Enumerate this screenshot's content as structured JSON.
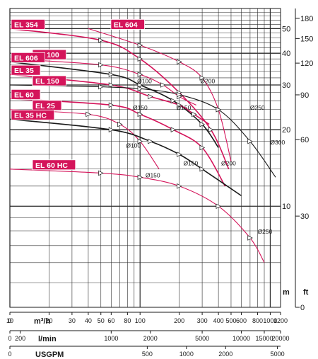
{
  "chart_data": {
    "type": "line",
    "scale": "log-log",
    "grid": true,
    "x_axes": [
      {
        "unit": "m³/h",
        "ticks": [
          "10",
          "20",
          "30",
          "40",
          "50",
          "60",
          "80",
          "100",
          "200",
          "300",
          "400",
          "500",
          "600",
          "800",
          "1000",
          "1200"
        ],
        "range": [
          10,
          1200
        ]
      },
      {
        "unit": "l/min",
        "ticks": [
          "0",
          "200",
          "1000",
          "2000",
          "5000",
          "10000",
          "15000",
          "20000"
        ]
      },
      {
        "unit": "USGPM",
        "ticks": [
          "0",
          "500",
          "1000",
          "2000",
          "5000"
        ]
      }
    ],
    "y_axes": [
      {
        "unit": "m",
        "ticks": [
          "10",
          "20",
          "30",
          "40",
          "50"
        ],
        "range": [
          4,
          60
        ]
      },
      {
        "unit": "ft",
        "ticks": [
          "0",
          "30",
          "60",
          "90",
          "120",
          "150",
          "180"
        ]
      }
    ],
    "series": [
      {
        "name": "EL 354",
        "color": "#d4145a",
        "x": [
          10,
          50,
          100,
          200,
          350,
          480
        ],
        "y": [
          50,
          45,
          38,
          28,
          20,
          14
        ]
      },
      {
        "name": "EL 100",
        "color": "#d4145a",
        "x": [
          10,
          50,
          100,
          150,
          200,
          270
        ],
        "y": [
          38,
          36,
          33,
          30,
          27,
          25
        ]
      },
      {
        "name": "EL 606",
        "color": "#1a1a1a",
        "x": [
          10,
          60,
          100,
          180,
          300,
          400
        ],
        "y": [
          37,
          33,
          30,
          26,
          21,
          17
        ]
      },
      {
        "name": "EL 604",
        "color": "#d4145a",
        "x": [
          40,
          100,
          200,
          300,
          400,
          500
        ],
        "y": [
          50,
          43,
          37,
          32,
          24,
          15
        ]
      },
      {
        "name": "EL 35",
        "color": "#d4145a",
        "x": [
          10,
          60,
          120,
          200,
          260,
          340
        ],
        "y": [
          33,
          30,
          27,
          25,
          23,
          21
        ]
      },
      {
        "name": "EL 150",
        "color": "#1a1a1a",
        "x": [
          10,
          50,
          100,
          200,
          400,
          700,
          1100
        ],
        "y": [
          30,
          29.5,
          29,
          27.5,
          24,
          18,
          13
        ]
      },
      {
        "name": "EL 60",
        "color": "#d4145a",
        "x": [
          10,
          60,
          100,
          180,
          300,
          450
        ],
        "y": [
          26.5,
          25,
          23,
          20,
          17,
          12
        ]
      },
      {
        "name": "EL 25",
        "color": "#d4145a",
        "x": [
          10,
          40,
          70,
          100,
          140
        ],
        "y": [
          24,
          23,
          21,
          18,
          14
        ]
      },
      {
        "name": "EL 35 HC",
        "color": "#1a1a1a",
        "x": [
          10,
          60,
          120,
          200,
          300,
          600
        ],
        "y": [
          22,
          20,
          18,
          16,
          14,
          11
        ]
      },
      {
        "name": "EL 60 HC",
        "color": "#d4145a",
        "x": [
          10,
          50,
          100,
          200,
          400,
          700,
          900
        ],
        "y": [
          14,
          13.5,
          13,
          12,
          10,
          7.5,
          6
        ]
      }
    ],
    "diameter_labels": [
      {
        "text": "Ø100",
        "x": 95,
        "y": 30.5
      },
      {
        "text": "Ø150",
        "x": 88,
        "y": 24
      },
      {
        "text": "Ø150",
        "x": 190,
        "y": 24
      },
      {
        "text": "Ø200",
        "x": 290,
        "y": 30.5
      },
      {
        "text": "Ø250",
        "x": 700,
        "y": 24
      },
      {
        "text": "Ø300",
        "x": 1000,
        "y": 17.5
      },
      {
        "text": "Ø100",
        "x": 78,
        "y": 17
      },
      {
        "text": "Ø150",
        "x": 110,
        "y": 13
      },
      {
        "text": "Ø150",
        "x": 215,
        "y": 14.5
      },
      {
        "text": "Ø200",
        "x": 420,
        "y": 14.5
      },
      {
        "text": "Ø250",
        "x": 800,
        "y": 7.8
      }
    ]
  }
}
